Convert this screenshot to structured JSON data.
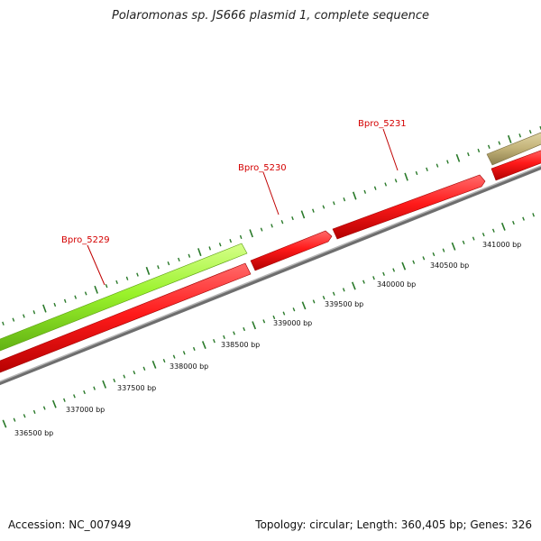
{
  "title": "Polaromonas sp. JS666 plasmid 1, complete sequence",
  "footer": {
    "accession": "Accession: NC_007949",
    "stats": "Topology: circular; Length: 360,405 bp; Genes: 326"
  },
  "scale_labels": [
    "336500 bp",
    "337000 bp",
    "337500 bp",
    "338000 bp",
    "338500 bp",
    "339000 bp",
    "339500 bp",
    "340000 bp",
    "340500 bp",
    "341000 bp"
  ],
  "gene_labels": [
    "Bpro_5229",
    "Bpro_5230",
    "Bpro_5231"
  ],
  "colors": {
    "green_gene": "#9af22b",
    "red_gene": "#ff1a1a",
    "olive_gene": "#c4b47a",
    "backbone": "#8c8c8c",
    "tick": "#2a7a2a",
    "label_red": "#d40000"
  }
}
